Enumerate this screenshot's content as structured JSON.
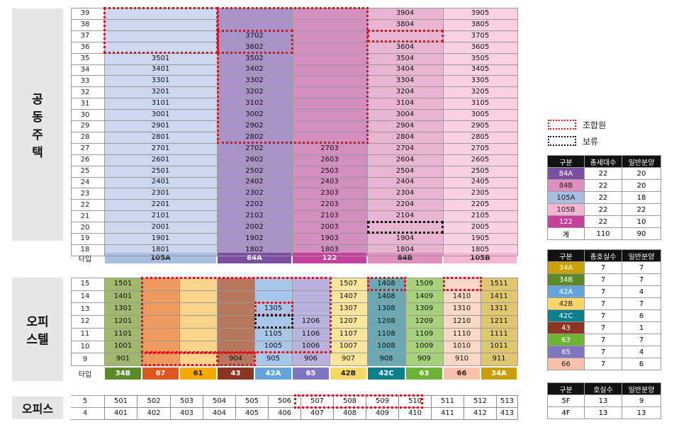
{
  "labels": {
    "housing": "공\n동\n주\n택",
    "officetel": "오피\n스텔",
    "office": "오피스",
    "type": "타입"
  },
  "colors": {
    "34A": "#c9a000",
    "34B": "#5b8a28",
    "42A": "#64a3dc",
    "42B": "#f9d668",
    "42C": "#0b7f8c",
    "43": "#8b3522",
    "63": "#6bb332",
    "65": "#7e76c2",
    "66": "#f9c1a9",
    "84A": "#7a4fa0",
    "84B": "#df8fbd",
    "105A": "#a9bde3",
    "105B": "#f4b4d2",
    "122": "#c4409a",
    "67": "#e0561c",
    "61": "#f5a800"
  },
  "housing": {
    "floors": [
      "39",
      "38",
      "37",
      "36",
      "35",
      "34",
      "33",
      "32",
      "31",
      "30",
      "29",
      "28",
      "27",
      "26",
      "25",
      "24",
      "23",
      "22",
      "21",
      "20",
      "19",
      "18"
    ],
    "columns": [
      {
        "type": "105A",
        "cells": [
          "",
          "",
          "",
          "",
          "3501",
          "3401",
          "3301",
          "3201",
          "3101",
          "3001",
          "2901",
          "2801",
          "2701",
          "2601",
          "2501",
          "2401",
          "2301",
          "2201",
          "2101",
          "2001",
          "1901",
          "1801"
        ]
      },
      {
        "type": "84A",
        "cells": [
          "",
          "",
          "3702",
          "3602",
          "3502",
          "3402",
          "3302",
          "3202",
          "3102",
          "3002",
          "2902",
          "2802",
          "2702",
          "2602",
          "2502",
          "2402",
          "2302",
          "2202",
          "2102",
          "2002",
          "1902",
          "1802"
        ]
      },
      {
        "type": "122",
        "cells": [
          "",
          "",
          "",
          "",
          "",
          "",
          "",
          "",
          "",
          "",
          "",
          "",
          "2703",
          "2603",
          "2503",
          "2403",
          "2303",
          "2203",
          "2103",
          "2003",
          "1903",
          "1803"
        ]
      },
      {
        "type": "84B",
        "cells": [
          "3904",
          "3804",
          "",
          "3604",
          "3504",
          "3404",
          "3304",
          "3204",
          "3104",
          "3004",
          "2904",
          "2804",
          "2704",
          "2604",
          "2504",
          "2404",
          "2304",
          "2204",
          "2104",
          "",
          "1904",
          "1804"
        ]
      },
      {
        "type": "105B",
        "cells": [
          "3905",
          "3805",
          "3705",
          "3605",
          "3505",
          "3405",
          "3305",
          "3205",
          "3105",
          "3005",
          "2905",
          "2805",
          "2705",
          "2605",
          "2505",
          "2405",
          "2305",
          "2205",
          "2105",
          "2005",
          "1905",
          "1805"
        ]
      }
    ]
  },
  "officetel": {
    "floors": [
      "15",
      "14",
      "13",
      "12",
      "11",
      "10",
      "9"
    ],
    "columns": [
      {
        "type": "34B",
        "cells": [
          "1501",
          "1401",
          "1301",
          "1201",
          "1101",
          "1001",
          "901"
        ]
      },
      {
        "type": "67",
        "cells": [
          "",
          "",
          "",
          "",
          "",
          "",
          ""
        ]
      },
      {
        "type": "61",
        "cells": [
          "",
          "",
          "",
          "",
          "",
          "",
          ""
        ]
      },
      {
        "type": "43",
        "cells": [
          "",
          "",
          "",
          "",
          "",
          "",
          "904"
        ]
      },
      {
        "type": "42A",
        "cells": [
          "",
          "",
          "1305",
          "",
          "1105",
          "1005",
          "905"
        ]
      },
      {
        "type": "65",
        "cells": [
          "",
          "",
          "",
          "1206",
          "1106",
          "1006",
          "906"
        ]
      },
      {
        "type": "42B",
        "cells": [
          "1507",
          "1407",
          "1307",
          "1207",
          "1107",
          "1007",
          "907"
        ]
      },
      {
        "type": "42C",
        "cells": [
          "1408",
          "1408",
          "1308",
          "1208",
          "1108",
          "1008",
          "908"
        ]
      },
      {
        "type": "63",
        "cells": [
          "1509",
          "1409",
          "1309",
          "1209",
          "1109",
          "1009",
          "909"
        ]
      },
      {
        "type": "66",
        "cells": [
          "",
          "1410",
          "1310",
          "1210",
          "1110",
          "1010",
          "910"
        ]
      },
      {
        "type": "34A",
        "cells": [
          "1511",
          "1411",
          "1311",
          "1211",
          "1111",
          "1011",
          "911"
        ]
      }
    ]
  },
  "office": {
    "floors": [
      "5",
      "4"
    ],
    "rows": [
      [
        "501",
        "502",
        "503",
        "504",
        "505",
        "506",
        "507",
        "508",
        "509",
        "510",
        "511",
        "512",
        "513"
      ],
      [
        "401",
        "402",
        "403",
        "404",
        "405",
        "406",
        "407",
        "408",
        "409",
        "410",
        "411",
        "412",
        "413"
      ]
    ]
  },
  "legend_marks": {
    "union": "조합원",
    "reserved": "보류"
  },
  "legend_housing": {
    "headers": [
      "구분",
      "총세대수",
      "일반분양"
    ],
    "rows": [
      [
        "84A",
        "22",
        "20"
      ],
      [
        "84B",
        "22",
        "20"
      ],
      [
        "105A",
        "22",
        "18"
      ],
      [
        "105B",
        "22",
        "22"
      ],
      [
        "122",
        "22",
        "10"
      ],
      [
        "계",
        "110",
        "90"
      ]
    ]
  },
  "legend_officetel": {
    "headers": [
      "구분",
      "총호실수",
      "일반분양"
    ],
    "rows": [
      [
        "34A",
        "7",
        "7"
      ],
      [
        "34B",
        "7",
        "7"
      ],
      [
        "42A",
        "7",
        "4"
      ],
      [
        "42B",
        "7",
        "7"
      ],
      [
        "42C",
        "7",
        "6"
      ],
      [
        "43",
        "7",
        "1"
      ],
      [
        "63",
        "7",
        "7"
      ],
      [
        "65",
        "7",
        "4"
      ],
      [
        "66",
        "7",
        "6"
      ]
    ]
  },
  "legend_office": {
    "headers": [
      "구분",
      "호실수",
      "일반분양"
    ],
    "rows": [
      [
        "5F",
        "13",
        "9"
      ],
      [
        "4F",
        "13",
        "13"
      ]
    ]
  }
}
